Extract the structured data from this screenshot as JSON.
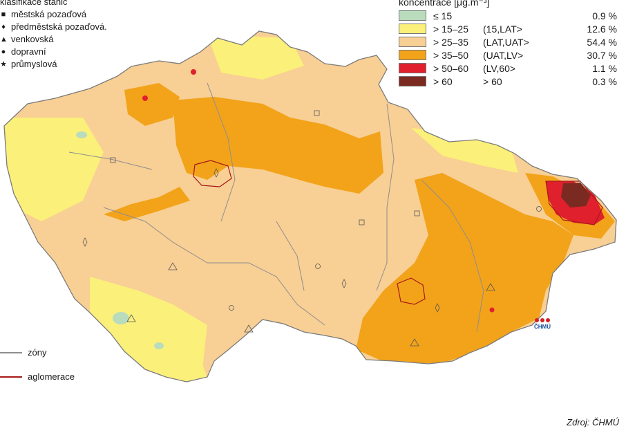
{
  "station_legend": {
    "title": "klasifikace stanic",
    "items": [
      {
        "symbol": "■",
        "label": "městská pozaďová"
      },
      {
        "symbol": "♦",
        "label": "předměstská pozaďová."
      },
      {
        "symbol": "▲",
        "label": "venkovská"
      },
      {
        "symbol": "●",
        "label": "dopravní"
      },
      {
        "symbol": "★",
        "label": "průmyslová"
      }
    ]
  },
  "concentration_legend": {
    "title": "koncentrace [μg.m⁻³]",
    "classes": [
      {
        "range": "≤ 15",
        "code": "",
        "percent": "0.9 %",
        "color": "#b9dcbc"
      },
      {
        "range": "> 15–25",
        "code": "(15,LAT>",
        "percent": "12.6 %",
        "color": "#fbf07a"
      },
      {
        "range": "> 25–35",
        "code": "(LAT,UAT>",
        "percent": "54.4 %",
        "color": "#f8cf94"
      },
      {
        "range": "> 35–50",
        "code": "(UAT,LV>",
        "percent": "30.7 %",
        "color": "#f2a31a"
      },
      {
        "range": "> 50–60",
        "code": "(LV,60>",
        "percent": "1.1 %",
        "color": "#e0202c"
      },
      {
        "range": "> 60",
        "code": "> 60",
        "percent": "0.3 %",
        "color": "#7b2a22"
      }
    ]
  },
  "line_legend": {
    "zones": {
      "label": "zóny",
      "color": "#8e8e8e"
    },
    "agglomerations": {
      "label": "aglomerace",
      "color": "#a81818"
    }
  },
  "logo_text": "ČHMÚ",
  "source": "Zdroj: ČHMÚ"
}
